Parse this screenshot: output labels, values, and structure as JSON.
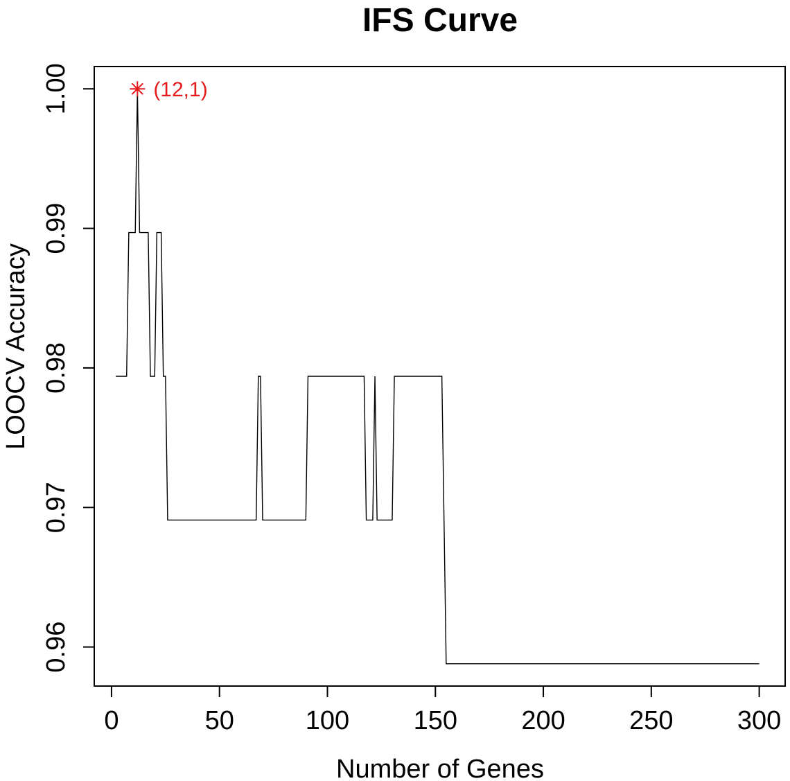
{
  "chart_data": {
    "type": "line",
    "title": "IFS Curve",
    "xlabel": "Number of Genes",
    "ylabel": "LOOCV Accuracy",
    "xlim": [
      -8,
      312
    ],
    "ylim": [
      0.9572,
      1.0016
    ],
    "xticks": [
      0,
      50,
      100,
      150,
      200,
      250,
      300
    ],
    "xtick_labels": [
      "0",
      "50",
      "100",
      "150",
      "200",
      "250",
      "300"
    ],
    "yticks": [
      0.96,
      0.97,
      0.98,
      0.99,
      1.0
    ],
    "ytick_labels": [
      "0.96",
      "0.97",
      "0.98",
      "0.99",
      "1.00"
    ],
    "grid": false,
    "series": [
      {
        "color": "#000000",
        "points": [
          [
            2,
            0.9794
          ],
          [
            7,
            0.9794
          ],
          [
            8,
            0.9897
          ],
          [
            11,
            0.9897
          ],
          [
            12,
            1.0
          ],
          [
            13,
            0.9897
          ],
          [
            17,
            0.9897
          ],
          [
            18,
            0.9794
          ],
          [
            20,
            0.9794
          ],
          [
            21,
            0.9897
          ],
          [
            23,
            0.9897
          ],
          [
            24,
            0.9794
          ],
          [
            25,
            0.9794
          ],
          [
            26,
            0.9691
          ],
          [
            67,
            0.9691
          ],
          [
            68,
            0.9794
          ],
          [
            69,
            0.9794
          ],
          [
            70,
            0.9691
          ],
          [
            90,
            0.9691
          ],
          [
            91,
            0.9794
          ],
          [
            117,
            0.9794
          ],
          [
            118,
            0.9691
          ],
          [
            121,
            0.9691
          ],
          [
            122,
            0.9794
          ],
          [
            123,
            0.9691
          ],
          [
            130,
            0.9691
          ],
          [
            131,
            0.9794
          ],
          [
            153,
            0.9794
          ],
          [
            155,
            0.9588
          ],
          [
            300,
            0.9588
          ]
        ]
      }
    ],
    "highlight": {
      "x": 12,
      "y": 1.0,
      "marker": "asterisk",
      "color": "#e41a1c",
      "label": "(12,1)"
    }
  }
}
